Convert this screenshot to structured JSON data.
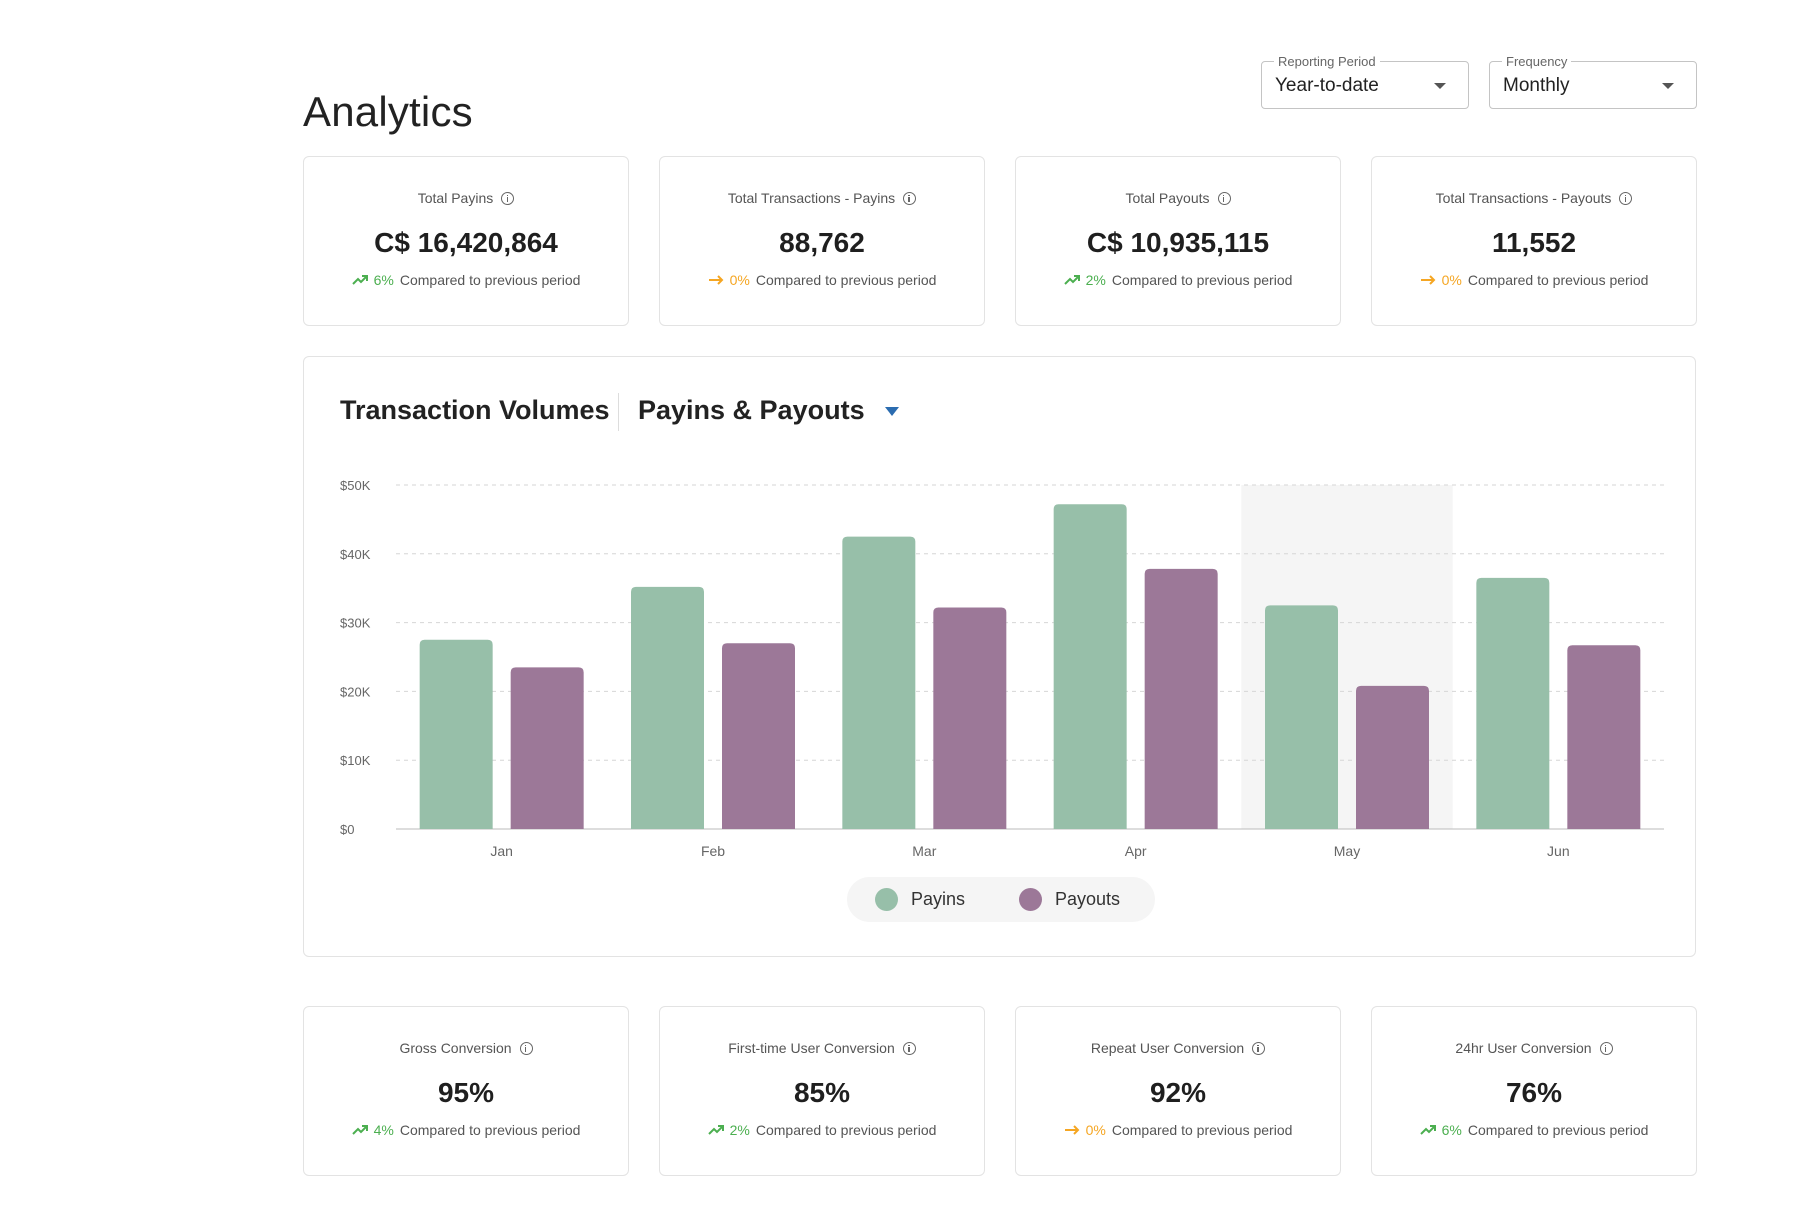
{
  "page": {
    "title": "Analytics"
  },
  "filters": {
    "reporting_period": {
      "label": "Reporting Period",
      "value": "Year-to-date"
    },
    "frequency": {
      "label": "Frequency",
      "value": "Monthly"
    }
  },
  "top_cards": [
    {
      "label": "Total Payins",
      "value": "C$ 16,420,864",
      "trend": "up",
      "pct": "6%",
      "compare": "Compared to previous period"
    },
    {
      "label": "Total Transactions - Payins",
      "value": "88,762",
      "trend": "flat",
      "pct": "0%",
      "compare": "Compared to previous period"
    },
    {
      "label": "Total Payouts",
      "value": "C$ 10,935,115",
      "trend": "up",
      "pct": "2%",
      "compare": "Compared to previous period"
    },
    {
      "label": "Total Transactions - Payouts",
      "value": "11,552",
      "trend": "flat",
      "pct": "0%",
      "compare": "Compared to previous period"
    }
  ],
  "chart": {
    "title": "Transaction Volumes",
    "selector_label": "Payins & Payouts",
    "legend": [
      "Payins",
      "Payouts"
    ]
  },
  "chart_data": {
    "type": "bar",
    "categories": [
      "Jan",
      "Feb",
      "Mar",
      "Apr",
      "May",
      "Jun"
    ],
    "series": [
      {
        "name": "Payins",
        "color": "#97bfa9",
        "values": [
          27500,
          35200,
          42500,
          47200,
          32500,
          36500
        ]
      },
      {
        "name": "Payouts",
        "color": "#9c7898",
        "values": [
          23500,
          27000,
          32200,
          37800,
          20800,
          26700
        ]
      }
    ],
    "ylim": [
      0,
      50000
    ],
    "yticks": [
      "$0",
      "$10K",
      "$20K",
      "$30K",
      "$40K",
      "$50K"
    ],
    "ytick_values": [
      0,
      10000,
      20000,
      30000,
      40000,
      50000
    ],
    "highlighted_category": "May",
    "grid": true,
    "legend_position": "bottom-center"
  },
  "bottom_cards": [
    {
      "label": "Gross Conversion",
      "value": "95%",
      "trend": "up",
      "pct": "4%",
      "compare": "Compared to previous period"
    },
    {
      "label": "First-time User Conversion",
      "value": "85%",
      "trend": "up",
      "pct": "2%",
      "compare": "Compared to previous period"
    },
    {
      "label": "Repeat User Conversion",
      "value": "92%",
      "trend": "flat",
      "pct": "0%",
      "compare": "Compared to previous period"
    },
    {
      "label": "24hr User Conversion",
      "value": "76%",
      "trend": "up",
      "pct": "6%",
      "compare": "Compared to previous period"
    }
  ],
  "colors": {
    "up": "#4caf50",
    "flat": "#f5a623",
    "accent": "#2b6cb0"
  }
}
